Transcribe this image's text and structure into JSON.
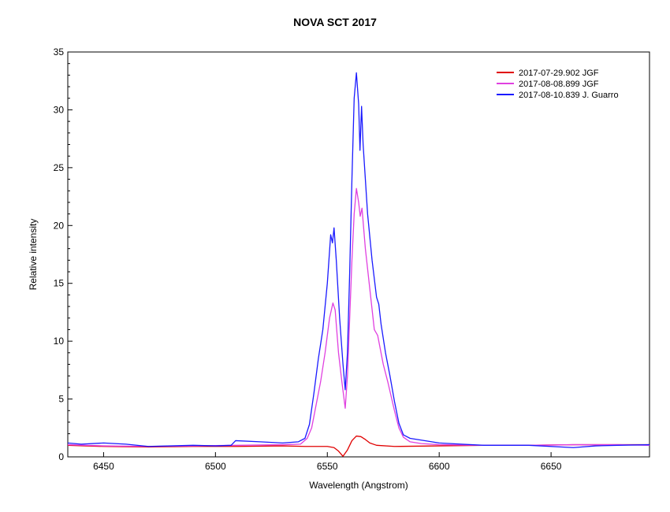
{
  "chart_data": {
    "type": "line",
    "title": "NOVA SCT 2017",
    "xlabel": "Wavelength (Angstrom)",
    "ylabel": "Relative intensity",
    "xlim": [
      6434,
      6694
    ],
    "ylim": [
      0,
      35
    ],
    "x_ticks": [
      6450,
      6500,
      6550,
      6600,
      6650
    ],
    "y_ticks": [
      0,
      5,
      10,
      15,
      20,
      25,
      30,
      35
    ],
    "grid": false,
    "legend_position": "top-right",
    "series": [
      {
        "name": "2017-07-29.902  JGF",
        "color": "#e00000",
        "points": [
          [
            6434,
            1.0
          ],
          [
            6450,
            0.9
          ],
          [
            6470,
            0.85
          ],
          [
            6490,
            0.9
          ],
          [
            6510,
            0.9
          ],
          [
            6530,
            0.95
          ],
          [
            6540,
            0.9
          ],
          [
            6550,
            0.9
          ],
          [
            6553,
            0.8
          ],
          [
            6555,
            0.5
          ],
          [
            6557,
            0.05
          ],
          [
            6559,
            0.6
          ],
          [
            6561,
            1.4
          ],
          [
            6563,
            1.8
          ],
          [
            6565,
            1.75
          ],
          [
            6567,
            1.5
          ],
          [
            6569,
            1.2
          ],
          [
            6572,
            1.0
          ],
          [
            6580,
            0.9
          ],
          [
            6600,
            0.95
          ],
          [
            6620,
            1.0
          ],
          [
            6640,
            1.0
          ],
          [
            6660,
            1.05
          ],
          [
            6680,
            1.05
          ],
          [
            6694,
            1.05
          ]
        ]
      },
      {
        "name": "2017-08-08.899  JGF",
        "color": "#e040e0",
        "points": [
          [
            6434,
            1.05
          ],
          [
            6450,
            0.95
          ],
          [
            6470,
            0.9
          ],
          [
            6490,
            0.95
          ],
          [
            6510,
            1.0
          ],
          [
            6530,
            1.05
          ],
          [
            6538,
            1.1
          ],
          [
            6541,
            1.6
          ],
          [
            6543,
            2.5
          ],
          [
            6545,
            4.5
          ],
          [
            6547,
            6.5
          ],
          [
            6549,
            9.0
          ],
          [
            6551,
            12.0
          ],
          [
            6552.5,
            13.3
          ],
          [
            6553.5,
            12.7
          ],
          [
            6555,
            9.0
          ],
          [
            6556.5,
            6.5
          ],
          [
            6558,
            4.2
          ],
          [
            6559,
            7.0
          ],
          [
            6560,
            12.0
          ],
          [
            6561,
            17.0
          ],
          [
            6562,
            21.0
          ],
          [
            6563,
            23.2
          ],
          [
            6564,
            22.0
          ],
          [
            6564.7,
            20.8
          ],
          [
            6565.5,
            21.5
          ],
          [
            6567,
            18.0
          ],
          [
            6569,
            14.5
          ],
          [
            6571,
            11.0
          ],
          [
            6572.5,
            10.5
          ],
          [
            6574,
            9.0
          ],
          [
            6575,
            8.0
          ],
          [
            6577,
            6.5
          ],
          [
            6580,
            4.0
          ],
          [
            6582,
            2.5
          ],
          [
            6584,
            1.7
          ],
          [
            6587,
            1.3
          ],
          [
            6592,
            1.15
          ],
          [
            6600,
            1.05
          ],
          [
            6620,
            1.0
          ],
          [
            6640,
            1.0
          ],
          [
            6660,
            1.05
          ],
          [
            6680,
            1.05
          ],
          [
            6694,
            1.0
          ]
        ]
      },
      {
        "name": "2017-08-10.839  J. Guarro",
        "color": "#1a1aff",
        "points": [
          [
            6434,
            1.2
          ],
          [
            6440,
            1.1
          ],
          [
            6450,
            1.2
          ],
          [
            6460,
            1.1
          ],
          [
            6470,
            0.9
          ],
          [
            6480,
            0.95
          ],
          [
            6490,
            1.0
          ],
          [
            6500,
            0.95
          ],
          [
            6507,
            1.0
          ],
          [
            6509,
            1.4
          ],
          [
            6520,
            1.3
          ],
          [
            6530,
            1.2
          ],
          [
            6537,
            1.3
          ],
          [
            6540,
            1.6
          ],
          [
            6542,
            2.8
          ],
          [
            6544,
            5.5
          ],
          [
            6546,
            8.5
          ],
          [
            6548,
            11.0
          ],
          [
            6550,
            15.0
          ],
          [
            6551.5,
            19.2
          ],
          [
            6552.3,
            18.5
          ],
          [
            6553,
            19.8
          ],
          [
            6554,
            17.0
          ],
          [
            6555.5,
            12.0
          ],
          [
            6557,
            8.0
          ],
          [
            6558,
            5.8
          ],
          [
            6559,
            9.0
          ],
          [
            6560,
            16.0
          ],
          [
            6561,
            24.0
          ],
          [
            6562,
            31.0
          ],
          [
            6563,
            33.2
          ],
          [
            6564,
            30.5
          ],
          [
            6564.6,
            26.5
          ],
          [
            6565.3,
            30.3
          ],
          [
            6566,
            27.0
          ],
          [
            6568,
            21.0
          ],
          [
            6570,
            17.0
          ],
          [
            6572,
            13.8
          ],
          [
            6573,
            13.2
          ],
          [
            6574,
            11.5
          ],
          [
            6576,
            9.0
          ],
          [
            6578,
            7.0
          ],
          [
            6580,
            4.8
          ],
          [
            6582,
            2.9
          ],
          [
            6584,
            1.9
          ],
          [
            6587,
            1.6
          ],
          [
            6592,
            1.45
          ],
          [
            6600,
            1.2
          ],
          [
            6610,
            1.1
          ],
          [
            6620,
            1.0
          ],
          [
            6640,
            1.0
          ],
          [
            6660,
            0.8
          ],
          [
            6670,
            0.95
          ],
          [
            6680,
            1.0
          ],
          [
            6694,
            1.05
          ]
        ]
      }
    ]
  }
}
